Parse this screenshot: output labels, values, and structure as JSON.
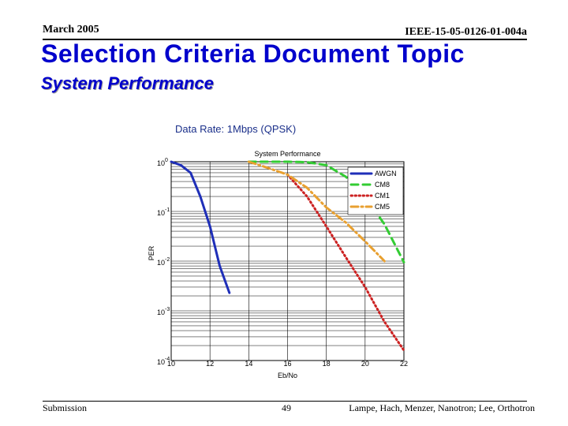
{
  "header": {
    "date": "March 2005",
    "doc_id": "IEEE-15-05-0126-01-004a"
  },
  "slide": {
    "title": "Selection Criteria Document Topic",
    "subtitle": "System Performance",
    "caption": "Data Rate: 1Mbps (QPSK)"
  },
  "footer": {
    "left": "Submission",
    "page": "49",
    "right": "Lampe, Hach, Menzer, Nanotron; Lee, Orthotron"
  },
  "chart_data": {
    "type": "line",
    "title": "System Performance",
    "xlabel": "Eb/No",
    "ylabel": "PER",
    "xlim": [
      10,
      22
    ],
    "ylim": [
      0.0001,
      1
    ],
    "yscale": "log",
    "xticks": [
      10,
      12,
      14,
      16,
      18,
      20,
      22
    ],
    "yticks": [
      {
        "base": "10",
        "exp": "0",
        "value": 1
      },
      {
        "base": "10",
        "exp": "-1",
        "value": 0.1
      },
      {
        "base": "10",
        "exp": "-2",
        "value": 0.01
      },
      {
        "base": "10",
        "exp": "-3",
        "value": 0.001
      },
      {
        "base": "10",
        "exp": "-4",
        "value": 0.0001
      }
    ],
    "grid": true,
    "legend_position": "top-right",
    "series": [
      {
        "name": "AWGN",
        "color": "#1f2fb8",
        "dash": "solid",
        "x": [
          10,
          10.5,
          11,
          11.5,
          12,
          12.5,
          13
        ],
        "y": [
          1.0,
          0.85,
          0.6,
          0.2,
          0.05,
          0.008,
          0.0023
        ]
      },
      {
        "name": "CM8",
        "color": "#33cc33",
        "dash": "dashed",
        "x": [
          14,
          15,
          16,
          17,
          18,
          19,
          20,
          21,
          22
        ],
        "y": [
          1.0,
          1.0,
          1.0,
          0.98,
          0.85,
          0.5,
          0.2,
          0.055,
          0.0095
        ]
      },
      {
        "name": "CM1",
        "color": "#cc2222",
        "dash": "dotted",
        "x": [
          16,
          17,
          18,
          19,
          20,
          21,
          22
        ],
        "y": [
          0.55,
          0.2,
          0.05,
          0.012,
          0.003,
          0.0006,
          0.00016
        ]
      },
      {
        "name": "CM5",
        "color": "#e8a030",
        "dash": "dashdot",
        "x": [
          14,
          15,
          16,
          17,
          18,
          19,
          20,
          21
        ],
        "y": [
          1.0,
          0.75,
          0.55,
          0.3,
          0.12,
          0.06,
          0.025,
          0.01
        ]
      }
    ]
  }
}
